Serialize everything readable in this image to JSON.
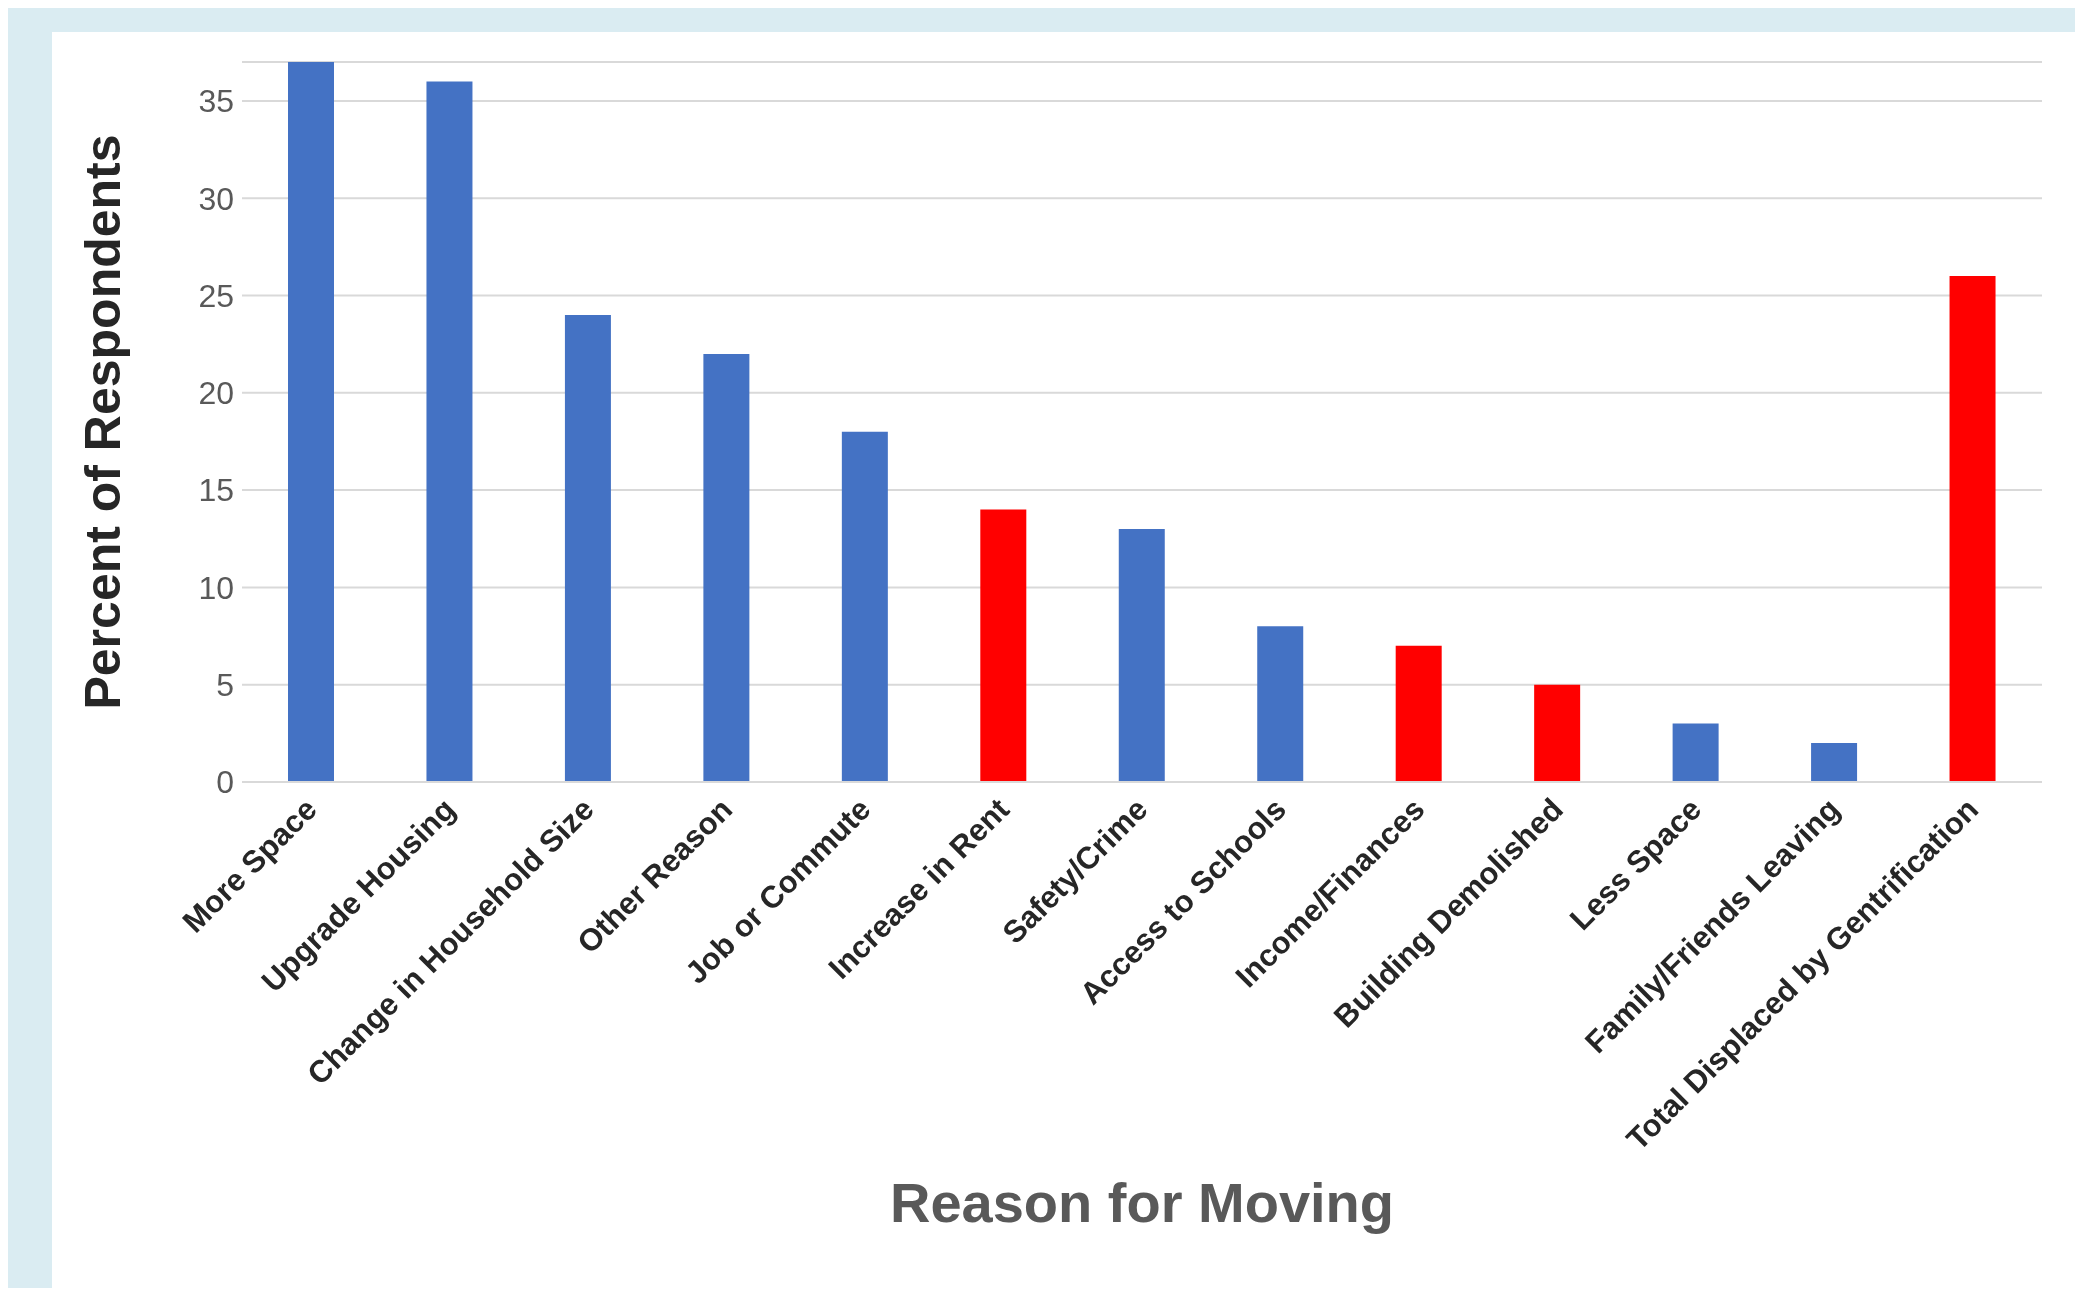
{
  "chart_data": {
    "type": "bar",
    "xlabel": "Reason for Moving",
    "ylabel": "Percent of  Respondents",
    "categories": [
      "More Space",
      "Upgrade Housing",
      "Change in Household Size",
      "Other Reason",
      "Job or Commute",
      "Increase in Rent",
      "Safety/Crime",
      "Access to Schools",
      "Income/Finances",
      "Building Demolished",
      "Less Space",
      "Family/Friends Leaving",
      "Total Displaced by Gentrification"
    ],
    "values": [
      37,
      36,
      24,
      22,
      18,
      14,
      13,
      8,
      7,
      5,
      3,
      2,
      26
    ],
    "colors": [
      "#4472c4",
      "#4472c4",
      "#4472c4",
      "#4472c4",
      "#4472c4",
      "#ff0000",
      "#4472c4",
      "#4472c4",
      "#ff0000",
      "#ff0000",
      "#4472c4",
      "#4472c4",
      "#ff0000"
    ],
    "ylim": [
      0,
      37
    ],
    "yticks": [
      0,
      5,
      10,
      15,
      20,
      25,
      30,
      35
    ],
    "grid": "y",
    "legend": false
  }
}
